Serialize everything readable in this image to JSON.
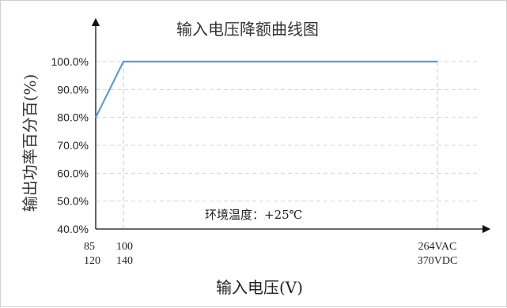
{
  "chart_data": {
    "type": "line",
    "title": "输入电压降额曲线图",
    "xlabel": "输入电压(V)",
    "ylabel": "输出功率百分百(%)",
    "annotation": "环境温度：+25℃",
    "ylim": [
      40,
      100
    ],
    "yticks": [
      "40.0%",
      "50.0%",
      "60.0%",
      "70.0%",
      "80.0%",
      "90.0%",
      "100.0%"
    ],
    "x_ticks": [
      {
        "ac": "85",
        "dc": "120"
      },
      {
        "ac": "100",
        "dc": "140"
      },
      {
        "ac": "264VAC",
        "dc": "370VDC"
      }
    ],
    "series": [
      {
        "x_ac": [
          85,
          100,
          264
        ],
        "x_dc": [
          120,
          140,
          370
        ],
        "values": [
          80,
          100,
          100
        ]
      }
    ],
    "line_color": "#5b9bd5",
    "grid": "horizontal dashed",
    "legend": "none"
  }
}
